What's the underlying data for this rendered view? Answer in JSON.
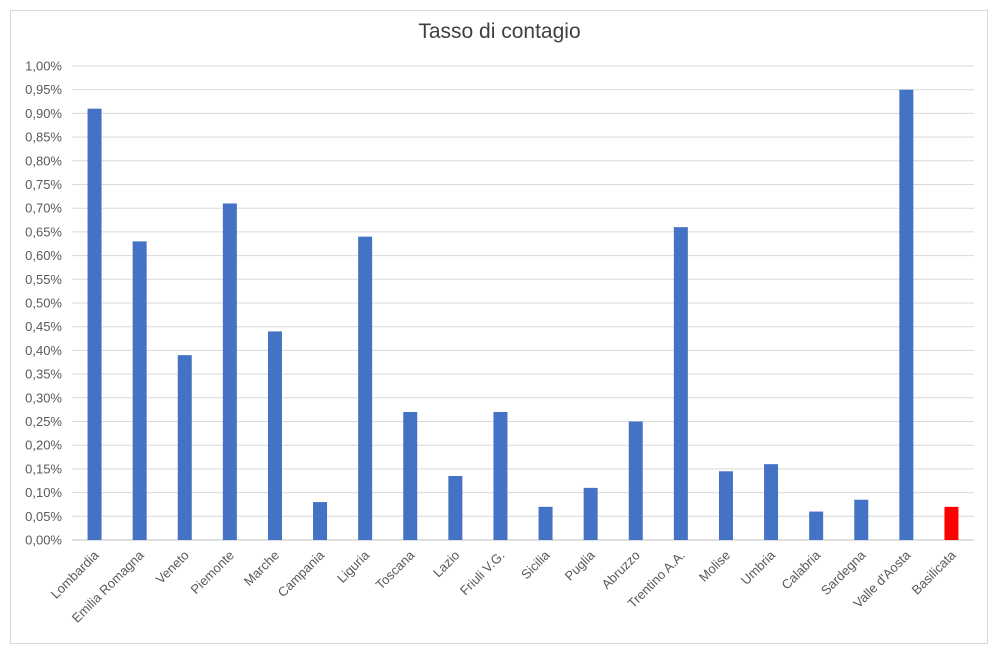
{
  "chart_data": {
    "type": "bar",
    "title": "Tasso di contagio",
    "xlabel": "",
    "ylabel": "",
    "ylim": [
      0,
      1.0
    ],
    "yticks": [
      "0,00%",
      "0,05%",
      "0,10%",
      "0,15%",
      "0,20%",
      "0,25%",
      "0,30%",
      "0,35%",
      "0,40%",
      "0,45%",
      "0,50%",
      "0,55%",
      "0,60%",
      "0,65%",
      "0,70%",
      "0,75%",
      "0,80%",
      "0,85%",
      "0,90%",
      "0,95%",
      "1,00%"
    ],
    "categories": [
      "Lombardia",
      "Emilia Romagna",
      "Veneto",
      "Piemonte",
      "Marche",
      "Campania",
      "Liguria",
      "Toscana",
      "Lazio",
      "Friuli V.G.",
      "Sicilia",
      "Puglia",
      "Abruzzo",
      "Trentino A.A.",
      "Molise",
      "Umbria",
      "Calabria",
      "Sardegna",
      "Valle d'Aosta",
      "Basilicata"
    ],
    "values": [
      0.91,
      0.63,
      0.39,
      0.71,
      0.44,
      0.08,
      0.64,
      0.27,
      0.135,
      0.27,
      0.07,
      0.11,
      0.25,
      0.66,
      0.145,
      0.16,
      0.06,
      0.085,
      0.95,
      0.07
    ],
    "colors": {
      "default": "#4472C4",
      "highlight": "#FF0000",
      "gridline": "#d9d9d9",
      "axis": "#bfbfbf"
    },
    "highlight_category": "Basilicata",
    "grid": true,
    "legend": "none"
  }
}
